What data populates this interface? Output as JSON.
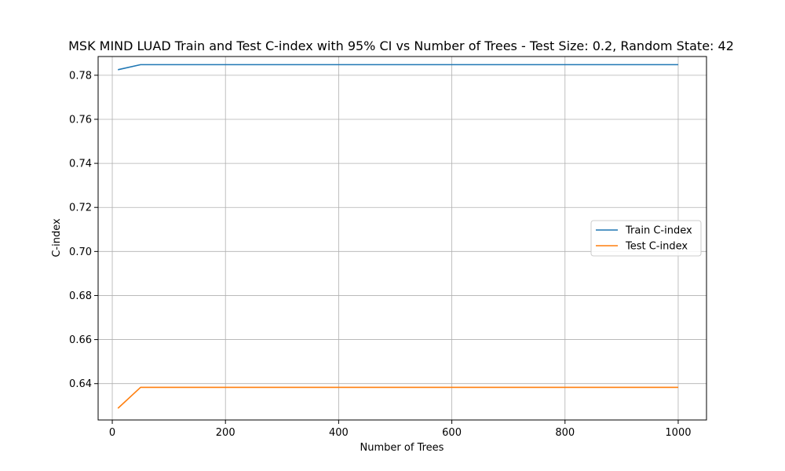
{
  "chart_data": {
    "type": "line",
    "title": "MSK MIND LUAD Train and Test C-index with 95% CI vs Number of Trees - Test Size: 0.2, Random State: 42",
    "xlabel": "Number of Trees",
    "ylabel": "C-index",
    "xlim": [
      -25,
      1050
    ],
    "ylim": [
      0.6235,
      0.7885
    ],
    "xticks": [
      0,
      200,
      400,
      600,
      800,
      1000
    ],
    "xtick_labels": [
      "0",
      "200",
      "400",
      "600",
      "800",
      "1000"
    ],
    "yticks": [
      0.64,
      0.66,
      0.68,
      0.7,
      0.72,
      0.74,
      0.76,
      0.78
    ],
    "ytick_labels": [
      "0.64",
      "0.66",
      "0.68",
      "0.70",
      "0.72",
      "0.74",
      "0.76",
      "0.78"
    ],
    "grid": true,
    "legend_position": "center-right",
    "x": [
      10,
      50,
      100,
      200,
      300,
      400,
      500,
      600,
      700,
      800,
      900,
      1000
    ],
    "series": [
      {
        "name": "Train C-index",
        "color": "#1f77b4",
        "values": [
          0.7825,
          0.7848,
          0.7848,
          0.7848,
          0.7848,
          0.7848,
          0.7848,
          0.7848,
          0.7848,
          0.7848,
          0.7848,
          0.7848
        ]
      },
      {
        "name": "Test C-index",
        "color": "#ff7f0e",
        "values": [
          0.6288,
          0.6383,
          0.6383,
          0.6383,
          0.6383,
          0.6383,
          0.6383,
          0.6383,
          0.6383,
          0.6383,
          0.6383,
          0.6383
        ]
      }
    ]
  }
}
